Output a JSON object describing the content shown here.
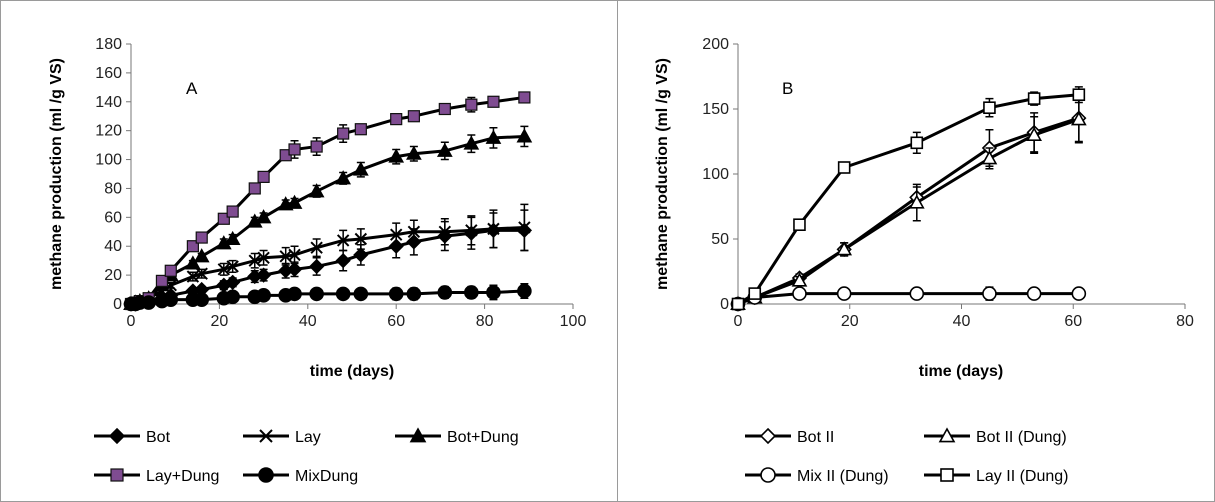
{
  "chart_data": [
    {
      "type": "line",
      "panel_label": "A",
      "xlabel": "time (days)",
      "ylabel": "methane production (ml /g VS)",
      "xlim": [
        0,
        100
      ],
      "ylim": [
        0,
        180
      ],
      "xticks": [
        0,
        20,
        40,
        60,
        80,
        100
      ],
      "yticks": [
        0,
        20,
        40,
        60,
        80,
        100,
        120,
        140,
        160,
        180
      ],
      "legend_position": "bottom",
      "series": [
        {
          "name": "Bot",
          "marker": "diamond-filled",
          "x": [
            0,
            1,
            2,
            4,
            7,
            9,
            14,
            16,
            21,
            23,
            28,
            30,
            35,
            37,
            42,
            48,
            52,
            60,
            64,
            71,
            77,
            82,
            89
          ],
          "y": [
            0,
            0,
            1,
            2,
            4,
            6,
            9,
            10,
            13,
            15,
            19,
            20,
            23,
            24,
            26,
            30,
            34,
            40,
            43,
            47,
            49,
            51,
            51
          ],
          "err": [
            0,
            0,
            1,
            1,
            1,
            1,
            2,
            2,
            3,
            3,
            4,
            4,
            5,
            5,
            6,
            7,
            7,
            8,
            9,
            10,
            11,
            12,
            14
          ]
        },
        {
          "name": "Lay",
          "marker": "x",
          "x": [
            0,
            1,
            2,
            4,
            7,
            9,
            14,
            16,
            21,
            23,
            28,
            30,
            35,
            37,
            42,
            48,
            52,
            60,
            64,
            71,
            77,
            82,
            89
          ],
          "y": [
            0,
            1,
            2,
            4,
            9,
            13,
            19,
            21,
            24,
            26,
            30,
            32,
            33,
            34,
            39,
            44,
            45,
            48,
            50,
            50,
            51,
            52,
            53
          ],
          "err": [
            0,
            1,
            1,
            1,
            2,
            2,
            3,
            3,
            4,
            4,
            5,
            5,
            6,
            6,
            6,
            7,
            7,
            8,
            8,
            9,
            10,
            13,
            16
          ]
        },
        {
          "name": "Bot+Dung",
          "marker": "triangle-filled",
          "x": [
            0,
            1,
            2,
            4,
            7,
            9,
            14,
            16,
            21,
            23,
            28,
            30,
            35,
            37,
            42,
            48,
            52,
            60,
            64,
            71,
            77,
            82,
            89
          ],
          "y": [
            0,
            1,
            2,
            4,
            13,
            20,
            28,
            33,
            42,
            45,
            57,
            60,
            69,
            70,
            78,
            87,
            93,
            102,
            104,
            106,
            111,
            115,
            116
          ],
          "err": [
            0,
            1,
            1,
            1,
            1,
            2,
            2,
            2,
            3,
            3,
            3,
            3,
            3,
            3,
            4,
            4,
            5,
            5,
            5,
            6,
            6,
            7,
            7
          ]
        },
        {
          "name": "Lay+Dung",
          "marker": "square-filled-purple",
          "x": [
            0,
            1,
            2,
            4,
            7,
            9,
            14,
            16,
            21,
            23,
            28,
            30,
            35,
            37,
            42,
            48,
            52,
            60,
            64,
            71,
            77,
            82,
            89
          ],
          "y": [
            0,
            1,
            2,
            4,
            16,
            23,
            40,
            46,
            59,
            64,
            80,
            88,
            103,
            107,
            109,
            118,
            121,
            128,
            130,
            135,
            138,
            140,
            143
          ],
          "err": [
            0,
            1,
            1,
            1,
            1,
            2,
            2,
            2,
            2,
            3,
            3,
            3,
            3,
            6,
            6,
            6,
            3,
            2,
            2,
            3,
            5,
            3,
            2
          ]
        },
        {
          "name": "MixDung",
          "marker": "circle-filled",
          "x": [
            0,
            1,
            2,
            4,
            7,
            9,
            14,
            16,
            21,
            23,
            28,
            30,
            35,
            37,
            42,
            48,
            52,
            60,
            64,
            71,
            77,
            82,
            89
          ],
          "y": [
            0,
            0,
            1,
            1,
            2,
            3,
            3,
            3,
            4,
            5,
            5,
            6,
            6,
            7,
            7,
            7,
            7,
            7,
            7,
            8,
            8,
            8,
            9
          ],
          "err": [
            0,
            0,
            1,
            1,
            1,
            1,
            1,
            1,
            2,
            2,
            2,
            2,
            2,
            3,
            3,
            3,
            3,
            4,
            4,
            4,
            4,
            5,
            5
          ]
        }
      ]
    },
    {
      "type": "line",
      "panel_label": "B",
      "xlabel": "time (days)",
      "ylabel": "methane production (ml /g VS)",
      "xlim": [
        0,
        80
      ],
      "ylim": [
        0,
        200
      ],
      "xticks": [
        0,
        20,
        40,
        60,
        80
      ],
      "yticks": [
        0,
        50,
        100,
        150,
        200
      ],
      "legend_position": "bottom",
      "series": [
        {
          "name": "Bot II",
          "marker": "diamond-open",
          "x": [
            0,
            3,
            11,
            19,
            32,
            45,
            53,
            61
          ],
          "y": [
            0,
            5,
            20,
            42,
            82,
            120,
            132,
            143
          ],
          "err": [
            2,
            2,
            3,
            5,
            8,
            14,
            15,
            18
          ]
        },
        {
          "name": "Bot II (Dung)",
          "marker": "triangle-open",
          "x": [
            0,
            3,
            11,
            19,
            32,
            45,
            53,
            61
          ],
          "y": [
            0,
            5,
            18,
            42,
            78,
            112,
            130,
            142
          ],
          "err": [
            2,
            2,
            3,
            5,
            14,
            8,
            14,
            18
          ]
        },
        {
          "name": "Mix II (Dung)",
          "marker": "circle-open",
          "x": [
            0,
            3,
            11,
            19,
            32,
            45,
            53,
            61
          ],
          "y": [
            0,
            5,
            8,
            8,
            8,
            8,
            8,
            8
          ],
          "err": [
            1,
            1,
            2,
            2,
            3,
            5,
            3,
            2
          ]
        },
        {
          "name": "Lay II (Dung)",
          "marker": "square-open",
          "x": [
            0,
            3,
            11,
            19,
            32,
            45,
            53,
            61
          ],
          "y": [
            0,
            8,
            61,
            105,
            124,
            151,
            158,
            161
          ],
          "err": [
            1,
            2,
            3,
            3,
            8,
            7,
            5,
            6
          ]
        }
      ]
    }
  ]
}
